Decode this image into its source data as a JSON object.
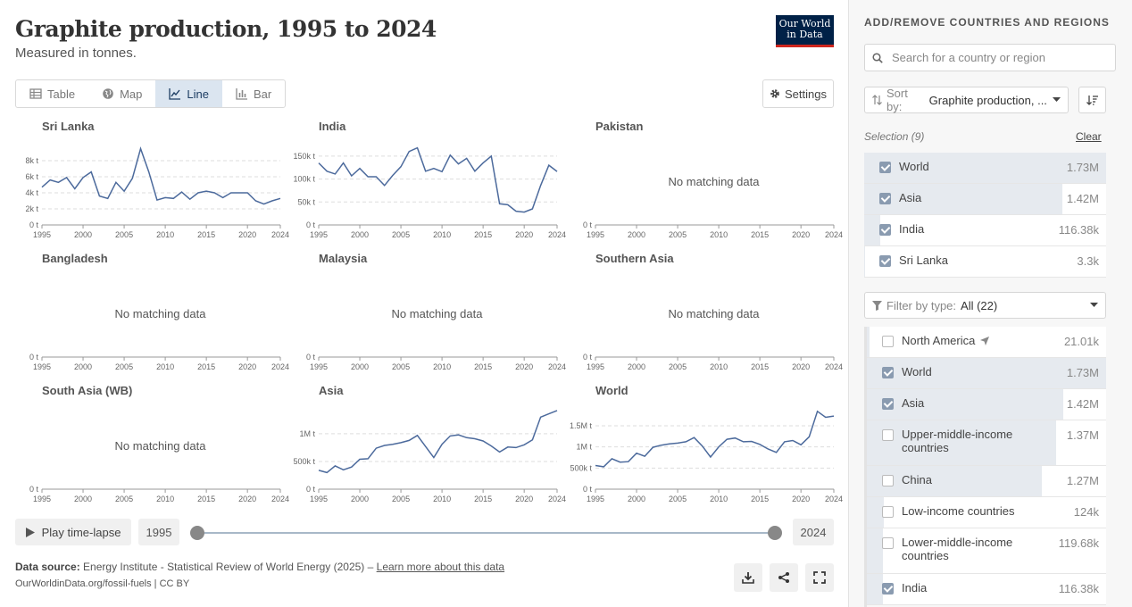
{
  "header": {
    "title": "Graphite production, 1995 to 2024",
    "subtitle": "Measured in tonnes.",
    "logo_line1": "Our World",
    "logo_line2": "in Data"
  },
  "tabs": [
    {
      "label": "Table",
      "icon": "table-icon"
    },
    {
      "label": "Map",
      "icon": "globe-icon"
    },
    {
      "label": "Line",
      "icon": "line-chart-icon",
      "active": true
    },
    {
      "label": "Bar",
      "icon": "bar-chart-icon"
    }
  ],
  "settings_label": "Settings",
  "no_data_text": "No matching data",
  "chart_data": [
    {
      "type": "line",
      "title": "Sri Lanka",
      "x": [
        1995,
        1996,
        1997,
        1998,
        1999,
        2000,
        2001,
        2002,
        2003,
        2004,
        2005,
        2006,
        2007,
        2008,
        2009,
        2010,
        2011,
        2012,
        2013,
        2014,
        2015,
        2016,
        2017,
        2018,
        2019,
        2020,
        2021,
        2022,
        2023,
        2024
      ],
      "values": [
        4700,
        5600,
        5300,
        5900,
        4500,
        5900,
        6600,
        3600,
        3300,
        5300,
        4200,
        5800,
        9500,
        6600,
        3100,
        3400,
        3300,
        4100,
        3200,
        4000,
        4200,
        4000,
        3400,
        4000,
        4000,
        4000,
        3000,
        2600,
        3000,
        3300
      ],
      "ylim": [
        0,
        10000
      ],
      "yticks": [
        0,
        2000,
        4000,
        6000,
        8000
      ],
      "ytick_labels": [
        "0 t",
        "2k t",
        "4k t",
        "6k t",
        "8k t"
      ]
    },
    {
      "type": "line",
      "title": "India",
      "x": [
        1995,
        1996,
        1997,
        1998,
        1999,
        2000,
        2001,
        2002,
        2003,
        2004,
        2005,
        2006,
        2007,
        2008,
        2009,
        2010,
        2011,
        2012,
        2013,
        2014,
        2015,
        2016,
        2017,
        2018,
        2019,
        2020,
        2021,
        2022,
        2023,
        2024
      ],
      "values": [
        135000,
        117000,
        111000,
        135000,
        107000,
        123000,
        105000,
        105000,
        86000,
        108000,
        127000,
        160000,
        168000,
        117000,
        123000,
        116000,
        152000,
        133000,
        145000,
        117000,
        135000,
        150000,
        46000,
        44000,
        30000,
        28000,
        35000,
        86000,
        130000,
        116380
      ],
      "ylim": [
        0,
        175000
      ],
      "yticks": [
        0,
        50000,
        100000,
        150000
      ],
      "ytick_labels": [
        "0 t",
        "50k t",
        "100k t",
        "150k t"
      ]
    },
    {
      "type": "line",
      "title": "Pakistan",
      "x": [],
      "values": [],
      "ytick_labels": [
        "0 t"
      ]
    },
    {
      "type": "line",
      "title": "Bangladesh",
      "x": [],
      "values": [],
      "ytick_labels": [
        "0 t"
      ]
    },
    {
      "type": "line",
      "title": "Malaysia",
      "x": [],
      "values": [],
      "ytick_labels": [
        "0 t"
      ]
    },
    {
      "type": "line",
      "title": "Southern Asia",
      "x": [],
      "values": [],
      "ytick_labels": [
        "0 t"
      ]
    },
    {
      "type": "line",
      "title": "South Asia (WB)",
      "x": [],
      "values": [],
      "ytick_labels": [
        "0 t"
      ]
    },
    {
      "type": "line",
      "title": "Asia",
      "x": [
        1995,
        1996,
        1997,
        1998,
        1999,
        2000,
        2001,
        2002,
        2003,
        2004,
        2005,
        2006,
        2007,
        2008,
        2009,
        2010,
        2011,
        2012,
        2013,
        2014,
        2015,
        2016,
        2017,
        2018,
        2019,
        2020,
        2021,
        2022,
        2023,
        2024
      ],
      "values": [
        340000,
        300000,
        420000,
        350000,
        400000,
        540000,
        550000,
        740000,
        790000,
        810000,
        840000,
        880000,
        970000,
        770000,
        570000,
        810000,
        960000,
        980000,
        930000,
        910000,
        870000,
        780000,
        670000,
        760000,
        750000,
        800000,
        890000,
        1300000,
        1360000,
        1420000
      ],
      "ylim": [
        0,
        1450000
      ],
      "yticks": [
        0,
        500000,
        1000000
      ],
      "ytick_labels": [
        "0 t",
        "500k t",
        "1M t"
      ]
    },
    {
      "type": "line",
      "title": "World",
      "x": [
        1995,
        1996,
        1997,
        1998,
        1999,
        2000,
        2001,
        2002,
        2003,
        2004,
        2005,
        2006,
        2007,
        2008,
        2009,
        2010,
        2011,
        2012,
        2013,
        2014,
        2015,
        2016,
        2017,
        2018,
        2019,
        2020,
        2021,
        2022,
        2023,
        2024
      ],
      "values": [
        560000,
        530000,
        720000,
        640000,
        650000,
        850000,
        780000,
        990000,
        1040000,
        1070000,
        1090000,
        1120000,
        1220000,
        1020000,
        760000,
        1000000,
        1180000,
        1210000,
        1120000,
        1130000,
        1060000,
        950000,
        870000,
        1120000,
        1150000,
        1050000,
        1240000,
        1840000,
        1700000,
        1730000
      ],
      "ylim": [
        0,
        1900000
      ],
      "yticks": [
        0,
        500000,
        1000000,
        1500000
      ],
      "ytick_labels": [
        "0 t",
        "500k t",
        "1M t",
        "1.5M t"
      ]
    }
  ],
  "x_tick_labels": [
    "1995",
    "2000",
    "2005",
    "2010",
    "2015",
    "2020",
    "2024"
  ],
  "timeline": {
    "play_label": "Play time-lapse",
    "start_year": "1995",
    "end_year": "2024"
  },
  "footer": {
    "source_label": "Data source:",
    "source_text": "Energy Institute - Statistical Review of World Energy (2025) –",
    "learn_more": "Learn more about this data",
    "url": "OurWorldinData.org/fossil-fuels | CC BY"
  },
  "sidebar": {
    "title": "ADD/REMOVE COUNTRIES AND REGIONS",
    "search_placeholder": "Search for a country or region",
    "sort_label": "Sort by:",
    "sort_value": "Graphite production, ...",
    "selection_label": "Selection (9)",
    "clear_label": "Clear",
    "selected": [
      {
        "name": "World",
        "value": "1.73M",
        "share": 1.0
      },
      {
        "name": "Asia",
        "value": "1.42M",
        "share": 0.82
      },
      {
        "name": "India",
        "value": "116.38k",
        "share": 0.067
      },
      {
        "name": "Sri Lanka",
        "value": "3.3k",
        "share": 0.002
      }
    ],
    "filter_label": "Filter by type:",
    "filter_value": "All (22)",
    "entities": [
      {
        "name": "North America",
        "value": "21.01k",
        "checked": false,
        "share": 0.012,
        "locate": true
      },
      {
        "name": "World",
        "value": "1.73M",
        "checked": true,
        "share": 1.0
      },
      {
        "name": "Asia",
        "value": "1.42M",
        "checked": true,
        "share": 0.82
      },
      {
        "name": "Upper-middle-income countries",
        "value": "1.37M",
        "checked": false,
        "share": 0.79
      },
      {
        "name": "China",
        "value": "1.27M",
        "checked": false,
        "share": 0.73
      },
      {
        "name": "Low-income countries",
        "value": "124k",
        "checked": false,
        "share": 0.072
      },
      {
        "name": "Lower-middle-income countries",
        "value": "119.68k",
        "checked": false,
        "share": 0.069
      },
      {
        "name": "India",
        "value": "116.38k",
        "checked": true,
        "share": 0.067
      }
    ]
  }
}
